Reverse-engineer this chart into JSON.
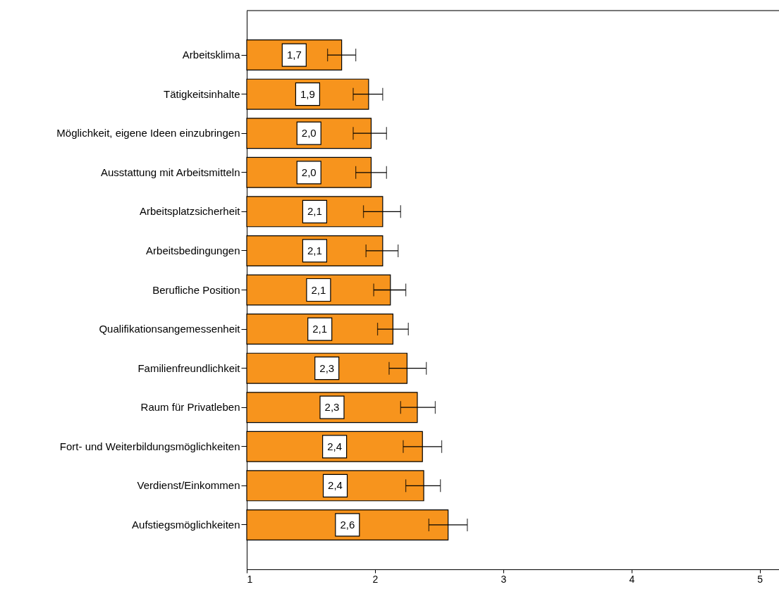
{
  "chart_data": {
    "type": "bar",
    "orientation": "horizontal",
    "categories": [
      "Arbeitsklima",
      "Tätigkeitsinhalte",
      "Möglichkeit, eigene Ideen einzubringen",
      "Ausstattung mit Arbeitsmitteln",
      "Arbeitsplatzsicherheit",
      "Arbeitsbedingungen",
      "Berufliche Position",
      "Qualifikationsangemessenheit",
      "Familienfreundlichkeit",
      "Raum für Privatleben",
      "Fort- und Weiterbildungsmöglichkeiten",
      "Verdienst/Einkommen",
      "Aufstiegsmöglichkeiten"
    ],
    "values": [
      1.74,
      1.95,
      1.97,
      1.97,
      2.06,
      2.06,
      2.12,
      2.14,
      2.25,
      2.33,
      2.37,
      2.38,
      2.57
    ],
    "value_labels": [
      "1,7",
      "1,9",
      "2,0",
      "2,0",
      "2,1",
      "2,1",
      "2,1",
      "2,1",
      "2,3",
      "2,3",
      "2,4",
      "2,4",
      "2,6"
    ],
    "errors": [
      [
        1.63,
        1.85
      ],
      [
        1.83,
        2.06
      ],
      [
        1.83,
        2.09
      ],
      [
        1.85,
        2.09
      ],
      [
        1.91,
        2.2
      ],
      [
        1.93,
        2.18
      ],
      [
        1.99,
        2.24
      ],
      [
        2.02,
        2.26
      ],
      [
        2.11,
        2.4
      ],
      [
        2.2,
        2.47
      ],
      [
        2.22,
        2.52
      ],
      [
        2.24,
        2.51
      ],
      [
        2.42,
        2.72
      ]
    ],
    "color": "#f7941d",
    "xlim": [
      1,
      5.15
    ],
    "xticks": [
      1,
      2,
      3,
      4,
      5
    ],
    "grid": false
  }
}
